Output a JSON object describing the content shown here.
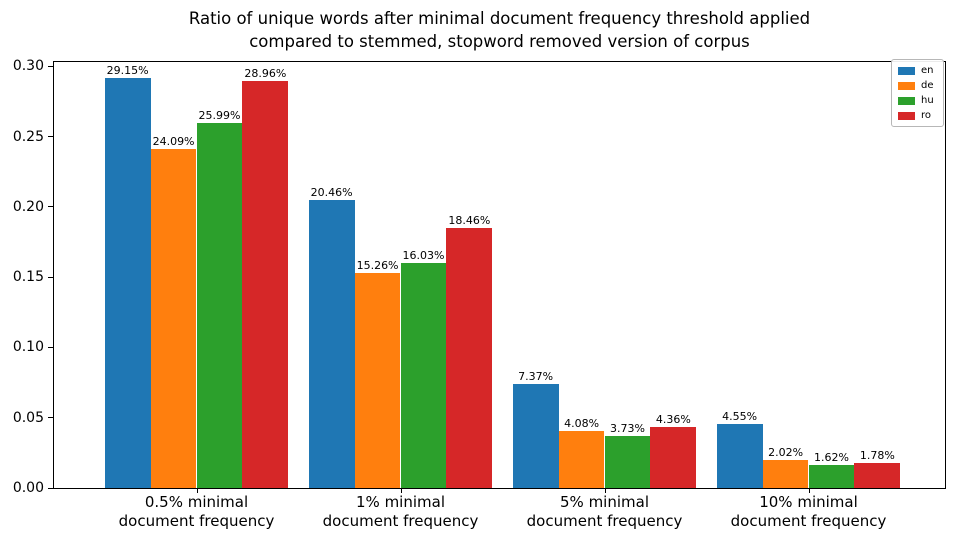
{
  "title": {
    "lines": [
      "Ratio of unique words after minimal document frequency threshold applied",
      "compared to stemmed, stopword removed version of corpus"
    ]
  },
  "chart_data": {
    "type": "bar",
    "title": "Ratio of unique words after minimal document frequency threshold applied compared to stemmed, stopword removed version of corpus",
    "categories": [
      "0.5% minimal\ndocument frequency",
      "1% minimal\ndocument frequency",
      "5% minimal\ndocument frequency",
      "10% minimal\ndocument frequency"
    ],
    "series": [
      {
        "name": "en",
        "color": "#1f77b4",
        "values": [
          0.2915,
          0.2046,
          0.0737,
          0.0455
        ],
        "bar_labels": [
          "29.15%",
          "20.46%",
          "7.37%",
          "4.55%"
        ]
      },
      {
        "name": "de",
        "color": "#ff7f0e",
        "values": [
          0.2409,
          0.1526,
          0.0408,
          0.0202
        ],
        "bar_labels": [
          "24.09%",
          "15.26%",
          "4.08%",
          "2.02%"
        ]
      },
      {
        "name": "hu",
        "color": "#2ca02c",
        "values": [
          0.2599,
          0.1603,
          0.0373,
          0.0162
        ],
        "bar_labels": [
          "25.99%",
          "16.03%",
          "3.73%",
          "1.62%"
        ]
      },
      {
        "name": "ro",
        "color": "#d62728",
        "values": [
          0.2896,
          0.1846,
          0.0436,
          0.0178
        ],
        "bar_labels": [
          "28.96%",
          "18.46%",
          "4.36%",
          "1.78%"
        ]
      }
    ],
    "xlabel": "",
    "ylabel": "",
    "ylim": [
      0,
      0.303
    ],
    "y_ticks": [
      {
        "value": 0.0,
        "label": "0.00"
      },
      {
        "value": 0.05,
        "label": "0.05"
      },
      {
        "value": 0.1,
        "label": "0.10"
      },
      {
        "value": 0.15,
        "label": "0.15"
      },
      {
        "value": 0.2,
        "label": "0.20"
      },
      {
        "value": 0.25,
        "label": "0.25"
      },
      {
        "value": 0.3,
        "label": "0.30"
      }
    ],
    "grid": false,
    "legend": {
      "position": "upper right",
      "entries": [
        "en",
        "de",
        "hu",
        "ro"
      ]
    }
  }
}
